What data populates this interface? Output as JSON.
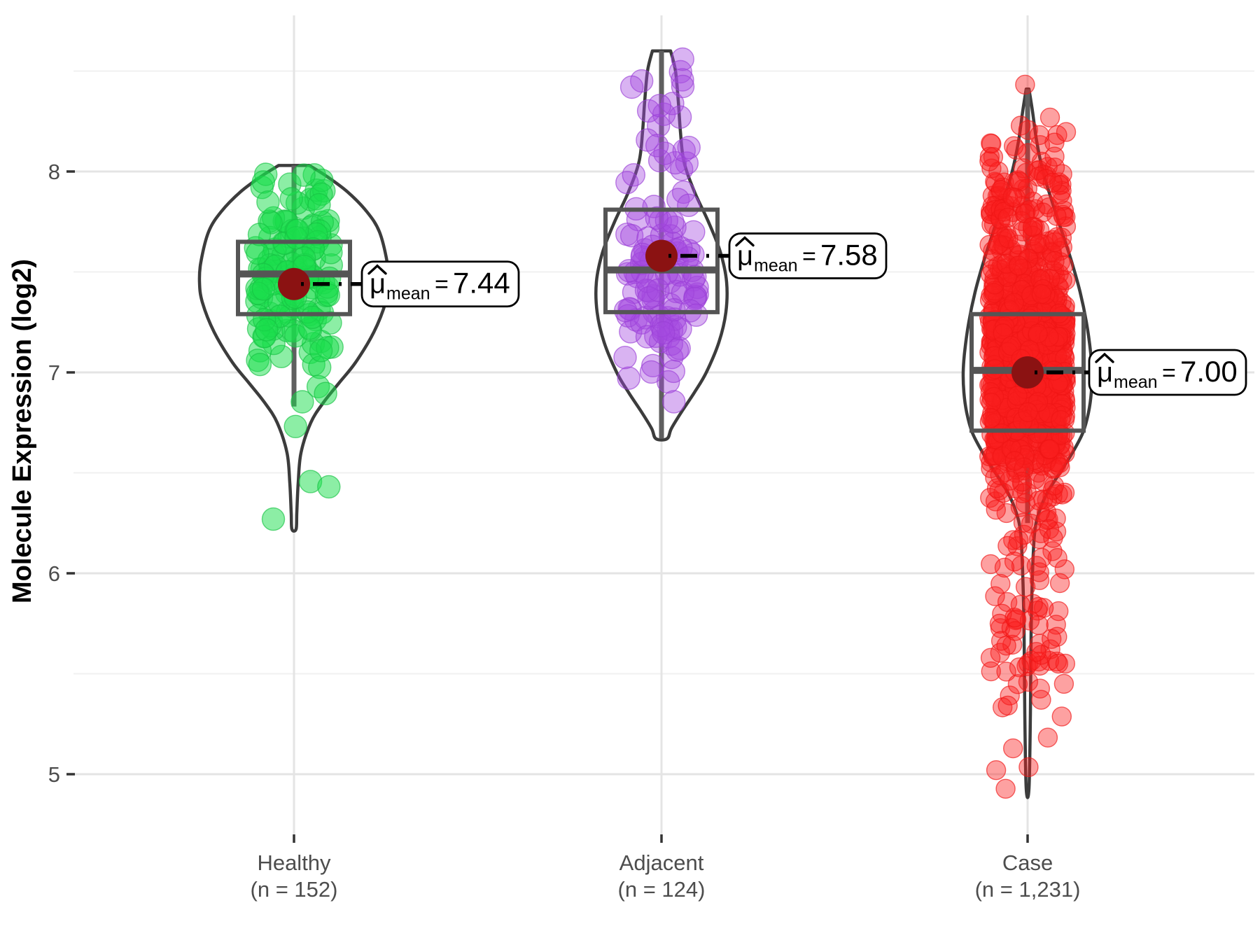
{
  "chart_data": {
    "type": "violin",
    "title": "",
    "ylabel": "Molecule Expression (log2)",
    "y_ticks": [
      8,
      7,
      6,
      5
    ],
    "y_minor_ticks": [
      8.5,
      7.5,
      6.5,
      5.5
    ],
    "ylim": [
      4.72,
      8.85
    ],
    "categories": [
      "Healthy",
      "Adjacent",
      "Case"
    ],
    "legend": "none",
    "grid": "major+minor",
    "groups": [
      {
        "id": "healthy",
        "tick_label_line1": "Healthy",
        "tick_label_line2": "(n = 152)",
        "n": 152,
        "mean": 7.44,
        "callout": {
          "mu": "μ",
          "hat": "^",
          "sub": "mean",
          "eq": "=",
          "value": "7.44"
        },
        "box": {
          "q1": 7.29,
          "median": 7.49,
          "q3": 7.65,
          "whisker_low": 6.83,
          "whisker_high": 8.03
        },
        "range": {
          "min": 6.22,
          "max": 8.03
        },
        "point_color": "#19DE4B",
        "point_stroke": "#17C243",
        "violin_profile": [
          [
            8.03,
            22
          ],
          [
            7.98,
            45
          ],
          [
            7.9,
            76
          ],
          [
            7.8,
            104
          ],
          [
            7.7,
            122
          ],
          [
            7.55,
            133
          ],
          [
            7.45,
            135
          ],
          [
            7.35,
            131
          ],
          [
            7.2,
            114
          ],
          [
            7.05,
            88
          ],
          [
            6.95,
            65
          ],
          [
            6.85,
            42
          ],
          [
            6.75,
            24
          ],
          [
            6.6,
            10
          ],
          [
            6.45,
            6
          ],
          [
            6.3,
            4
          ],
          [
            6.22,
            3
          ]
        ],
        "scatter_hint": {
          "seed": 7,
          "radius": 16,
          "fill_opacity": 0.5,
          "jitter": 55,
          "mix": [
            {
              "w": 0.94,
              "mu": 7.48,
              "sd": 0.25
            },
            {
              "w": 0.06,
              "mu": 6.65,
              "sd": 0.25
            }
          ]
        }
      },
      {
        "id": "adjacent",
        "tick_label_line1": "Adjacent",
        "tick_label_line2": "(n = 124)",
        "n": 124,
        "mean": 7.58,
        "callout": {
          "mu": "μ",
          "hat": "^",
          "sub": "mean",
          "eq": "=",
          "value": "7.58"
        },
        "box": {
          "q1": 7.3,
          "median": 7.51,
          "q3": 7.81,
          "whisker_low": 6.67,
          "whisker_high": 8.6
        },
        "range": {
          "min": 6.65,
          "max": 8.62
        },
        "point_color": "#A54BE1",
        "point_stroke": "#9A3FD6",
        "violin_profile": [
          [
            8.6,
            13
          ],
          [
            8.5,
            20
          ],
          [
            8.35,
            24
          ],
          [
            8.2,
            27
          ],
          [
            8.05,
            32
          ],
          [
            7.9,
            47
          ],
          [
            7.75,
            67
          ],
          [
            7.6,
            84
          ],
          [
            7.45,
            93
          ],
          [
            7.3,
            92
          ],
          [
            7.15,
            82
          ],
          [
            7.0,
            64
          ],
          [
            6.9,
            47
          ],
          [
            6.8,
            28
          ],
          [
            6.72,
            14
          ],
          [
            6.67,
            8
          ]
        ],
        "scatter_hint": {
          "seed": 11,
          "radius": 16,
          "fill_opacity": 0.42,
          "jitter": 52,
          "mix": [
            {
              "w": 0.86,
              "mu": 7.46,
              "sd": 0.27
            },
            {
              "w": 0.14,
              "mu": 8.3,
              "sd": 0.18
            }
          ]
        }
      },
      {
        "id": "case",
        "tick_label_line1": "Case",
        "tick_label_line2": "(n = 1,231)",
        "n": 1231,
        "mean": 7.0,
        "callout": {
          "mu": "μ",
          "hat": "^",
          "sub": "mean",
          "eq": "=",
          "value": "7.00"
        },
        "box": {
          "q1": 6.71,
          "median": 7.01,
          "q3": 7.29,
          "whisker_low": 6.25,
          "whisker_high": 8.41
        },
        "range": {
          "min": 4.9,
          "max": 8.45
        },
        "point_color": "#FA1E1E",
        "point_stroke": "#EF1515",
        "violin_profile": [
          [
            8.41,
            2
          ],
          [
            8.3,
            7
          ],
          [
            8.15,
            13
          ],
          [
            8.0,
            22
          ],
          [
            7.85,
            35
          ],
          [
            7.7,
            49
          ],
          [
            7.55,
            63
          ],
          [
            7.4,
            75
          ],
          [
            7.25,
            84
          ],
          [
            7.1,
            90
          ],
          [
            7.0,
            92
          ],
          [
            6.9,
            91
          ],
          [
            6.8,
            87
          ],
          [
            6.7,
            79
          ],
          [
            6.6,
            64
          ],
          [
            6.5,
            46
          ],
          [
            6.4,
            28
          ],
          [
            6.3,
            16
          ],
          [
            6.2,
            10
          ],
          [
            6.0,
            7
          ],
          [
            5.7,
            5
          ],
          [
            5.3,
            4
          ],
          [
            4.93,
            2
          ]
        ],
        "scatter_hint": {
          "seed": 13,
          "radius": 13.5,
          "fill_opacity": 0.42,
          "jitter": 55,
          "mix": [
            {
              "w": 0.8,
              "mu": 7.0,
              "sd": 0.28
            },
            {
              "w": 0.13,
              "mu": 7.75,
              "sd": 0.28
            },
            {
              "w": 0.07,
              "mu": 5.92,
              "sd": 0.46
            }
          ]
        }
      }
    ],
    "mean_point_color": "#8B1212",
    "violin_stroke": "#3C3C3C",
    "box_stroke": "#555555",
    "stem_stroke": "#5F5F5F",
    "grid_major_color": "#E4E4E4",
    "grid_minor_color": "#F0F0F0",
    "axis_text_color": "#4D4D4D",
    "tick_mark_color": "#333333",
    "callout_bg": "#FFFFFF",
    "callout_border": "#000000"
  }
}
